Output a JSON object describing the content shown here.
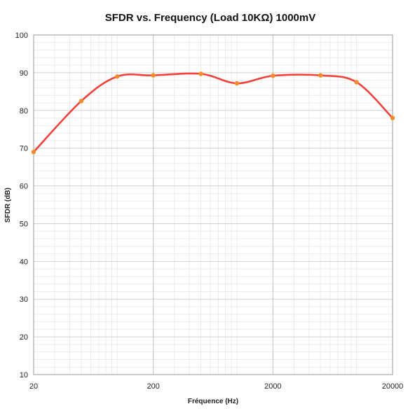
{
  "chart_data": {
    "type": "line",
    "title": "SFDR vs. Frequency (Load  10KΩ) 1000mV",
    "xlabel": "Fréquence (Hz)",
    "ylabel": "SFDR (dB)",
    "x_scale": "log",
    "xlim": [
      20,
      20000
    ],
    "ylim": [
      10,
      100
    ],
    "x_ticks": [
      20,
      200,
      2000,
      20000
    ],
    "x_tick_labels": [
      "20",
      "200",
      "2000",
      "20000"
    ],
    "y_ticks": [
      10,
      20,
      30,
      40,
      50,
      60,
      70,
      80,
      90,
      100
    ],
    "y_tick_labels": [
      "10",
      "20",
      "30",
      "40",
      "50",
      "60",
      "70",
      "80",
      "90",
      "100"
    ],
    "grid": true,
    "series": [
      {
        "x": [
          20,
          50,
          100,
          200,
          500,
          1000,
          2000,
          5000,
          10000,
          20000
        ],
        "y": [
          69,
          82.5,
          89,
          89.3,
          89.7,
          87.2,
          89.2,
          89.3,
          87.5,
          78
        ],
        "line_color": "#f0413a",
        "marker_color": "#f28c28"
      }
    ]
  }
}
